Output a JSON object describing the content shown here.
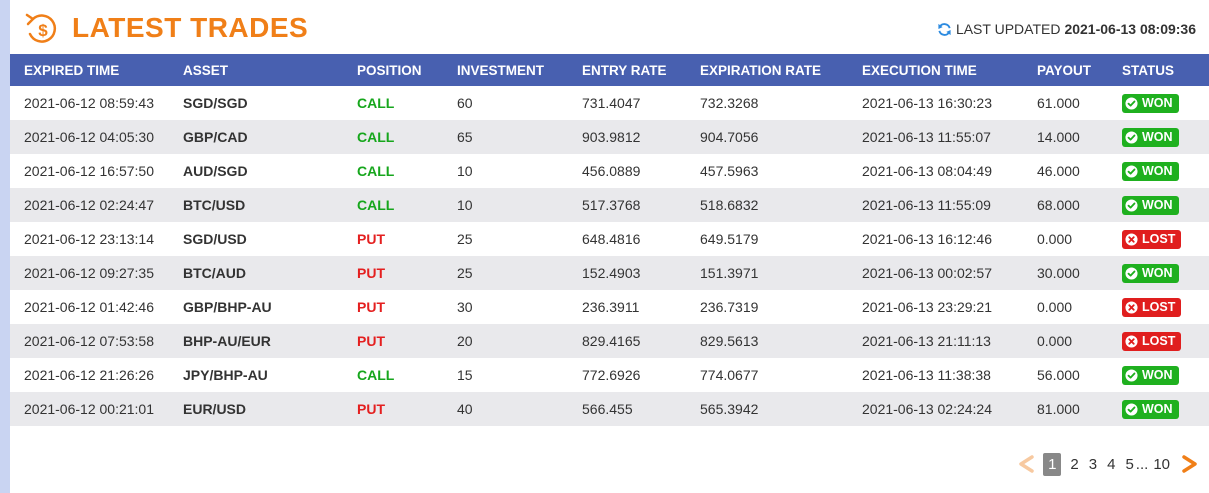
{
  "header": {
    "title": "LATEST TRADES",
    "updated_label": "LAST UPDATED",
    "updated_value": "2021-06-13 08:09:36"
  },
  "table": {
    "columns": [
      "EXPIRED TIME",
      "ASSET",
      "POSITION",
      "INVESTMENT",
      "ENTRY RATE",
      "EXPIRATION RATE",
      "EXECUTION TIME",
      "PAYOUT",
      "STATUS"
    ],
    "rows": [
      {
        "expired": "2021-06-12 08:59:43",
        "asset": "SGD/SGD",
        "position": "CALL",
        "investment": "60",
        "entry": "731.4047",
        "expiration": "732.3268",
        "execution": "2021-06-13 16:30:23",
        "payout": "61.000",
        "status": "WON"
      },
      {
        "expired": "2021-06-12 04:05:30",
        "asset": "GBP/CAD",
        "position": "CALL",
        "investment": "65",
        "entry": "903.9812",
        "expiration": "904.7056",
        "execution": "2021-06-13 11:55:07",
        "payout": "14.000",
        "status": "WON"
      },
      {
        "expired": "2021-06-12 16:57:50",
        "asset": "AUD/SGD",
        "position": "CALL",
        "investment": "10",
        "entry": "456.0889",
        "expiration": "457.5963",
        "execution": "2021-06-13 08:04:49",
        "payout": "46.000",
        "status": "WON"
      },
      {
        "expired": "2021-06-12 02:24:47",
        "asset": "BTC/USD",
        "position": "CALL",
        "investment": "10",
        "entry": "517.3768",
        "expiration": "518.6832",
        "execution": "2021-06-13 11:55:09",
        "payout": "68.000",
        "status": "WON"
      },
      {
        "expired": "2021-06-12 23:13:14",
        "asset": "SGD/USD",
        "position": "PUT",
        "investment": "25",
        "entry": "648.4816",
        "expiration": "649.5179",
        "execution": "2021-06-13 16:12:46",
        "payout": "0.000",
        "status": "LOST"
      },
      {
        "expired": "2021-06-12 09:27:35",
        "asset": "BTC/AUD",
        "position": "PUT",
        "investment": "25",
        "entry": "152.4903",
        "expiration": "151.3971",
        "execution": "2021-06-13 00:02:57",
        "payout": "30.000",
        "status": "WON"
      },
      {
        "expired": "2021-06-12 01:42:46",
        "asset": "GBP/BHP-AU",
        "position": "PUT",
        "investment": "30",
        "entry": "236.3911",
        "expiration": "236.7319",
        "execution": "2021-06-13 23:29:21",
        "payout": "0.000",
        "status": "LOST"
      },
      {
        "expired": "2021-06-12 07:53:58",
        "asset": "BHP-AU/EUR",
        "position": "PUT",
        "investment": "20",
        "entry": "829.4165",
        "expiration": "829.5613",
        "execution": "2021-06-13 21:11:13",
        "payout": "0.000",
        "status": "LOST"
      },
      {
        "expired": "2021-06-12 21:26:26",
        "asset": "JPY/BHP-AU",
        "position": "CALL",
        "investment": "15",
        "entry": "772.6926",
        "expiration": "774.0677",
        "execution": "2021-06-13 11:38:38",
        "payout": "56.000",
        "status": "WON"
      },
      {
        "expired": "2021-06-12 00:21:01",
        "asset": "EUR/USD",
        "position": "PUT",
        "investment": "40",
        "entry": "566.455",
        "expiration": "565.3942",
        "execution": "2021-06-13 02:24:24",
        "payout": "81.000",
        "status": "WON"
      }
    ]
  },
  "pagination": {
    "pages": [
      "1",
      "2",
      "3",
      "4",
      "5"
    ],
    "active": "1",
    "ellipsis": "...",
    "last": "10"
  },
  "colors": {
    "accent": "#f07f18",
    "header_bg": "#4860b0",
    "call": "#16a61c",
    "put": "#e41f1f",
    "won": "#1fb01f",
    "lost": "#e01e1e"
  }
}
